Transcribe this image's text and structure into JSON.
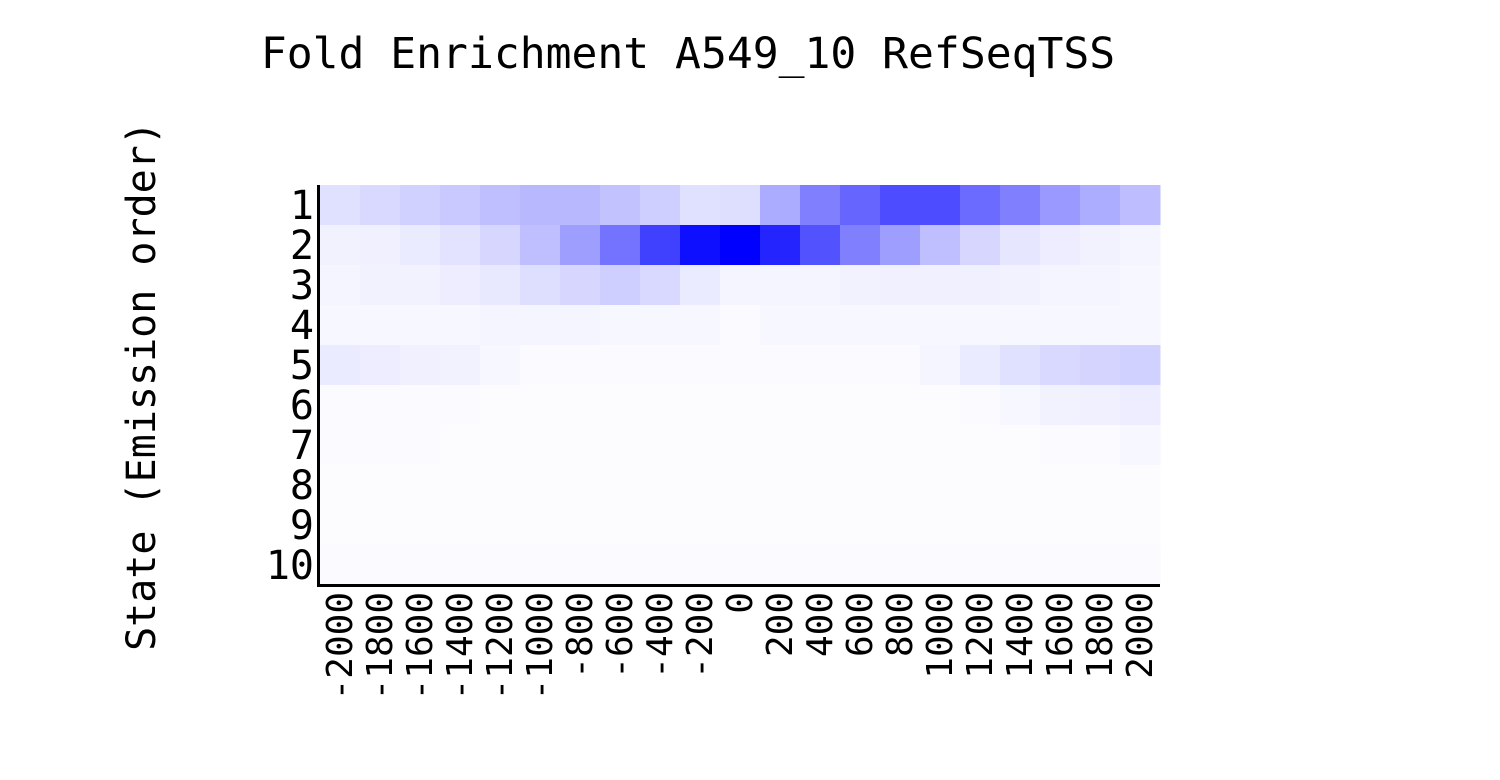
{
  "chart_data": {
    "type": "heatmap",
    "title": "Fold Enrichment A549_10 RefSeqTSS",
    "xlabel": "",
    "ylabel": "State (Emission order)",
    "x_categories": [
      "-2000",
      "-1800",
      "-1600",
      "-1400",
      "-1200",
      "-1000",
      "-800",
      "-600",
      "-400",
      "-200",
      "0",
      "200",
      "400",
      "600",
      "800",
      "1000",
      "1200",
      "1400",
      "1600",
      "1800",
      "2000"
    ],
    "y_categories": [
      "1",
      "2",
      "3",
      "4",
      "5",
      "6",
      "7",
      "8",
      "9",
      "10"
    ],
    "color_scale": {
      "low": "#ffffff",
      "high": "#0000ff"
    },
    "values": [
      [
        0.12,
        0.15,
        0.18,
        0.21,
        0.25,
        0.28,
        0.28,
        0.24,
        0.19,
        0.12,
        0.13,
        0.33,
        0.5,
        0.6,
        0.7,
        0.7,
        0.58,
        0.5,
        0.4,
        0.32,
        0.26
      ],
      [
        0.05,
        0.06,
        0.08,
        0.11,
        0.16,
        0.25,
        0.38,
        0.55,
        0.75,
        0.94,
        1.0,
        0.86,
        0.68,
        0.5,
        0.38,
        0.25,
        0.16,
        0.1,
        0.07,
        0.05,
        0.04
      ],
      [
        0.04,
        0.05,
        0.05,
        0.07,
        0.09,
        0.13,
        0.16,
        0.19,
        0.15,
        0.08,
        0.04,
        0.04,
        0.04,
        0.05,
        0.06,
        0.06,
        0.06,
        0.05,
        0.04,
        0.04,
        0.03
      ],
      [
        0.03,
        0.03,
        0.03,
        0.03,
        0.04,
        0.04,
        0.04,
        0.03,
        0.03,
        0.03,
        0.02,
        0.03,
        0.03,
        0.03,
        0.03,
        0.03,
        0.03,
        0.03,
        0.03,
        0.03,
        0.03
      ],
      [
        0.08,
        0.07,
        0.06,
        0.05,
        0.03,
        0.02,
        0.02,
        0.02,
        0.02,
        0.02,
        0.02,
        0.02,
        0.02,
        0.02,
        0.02,
        0.04,
        0.08,
        0.12,
        0.15,
        0.17,
        0.18
      ],
      [
        0.02,
        0.02,
        0.02,
        0.02,
        0.01,
        0.01,
        0.01,
        0.01,
        0.01,
        0.01,
        0.01,
        0.01,
        0.01,
        0.01,
        0.01,
        0.01,
        0.02,
        0.03,
        0.05,
        0.06,
        0.07
      ],
      [
        0.02,
        0.02,
        0.02,
        0.01,
        0.01,
        0.01,
        0.01,
        0.01,
        0.01,
        0.01,
        0.01,
        0.01,
        0.01,
        0.01,
        0.01,
        0.01,
        0.01,
        0.01,
        0.02,
        0.02,
        0.03
      ],
      [
        0.01,
        0.01,
        0.01,
        0.01,
        0.01,
        0.01,
        0.01,
        0.01,
        0.01,
        0.01,
        0.01,
        0.01,
        0.01,
        0.01,
        0.01,
        0.01,
        0.01,
        0.01,
        0.01,
        0.01,
        0.01
      ],
      [
        0.01,
        0.01,
        0.01,
        0.01,
        0.01,
        0.01,
        0.01,
        0.01,
        0.01,
        0.01,
        0.01,
        0.01,
        0.01,
        0.01,
        0.01,
        0.01,
        0.01,
        0.01,
        0.01,
        0.01,
        0.01
      ],
      [
        0.02,
        0.02,
        0.02,
        0.02,
        0.02,
        0.02,
        0.02,
        0.02,
        0.02,
        0.02,
        0.02,
        0.02,
        0.02,
        0.02,
        0.02,
        0.02,
        0.02,
        0.02,
        0.02,
        0.02,
        0.02
      ]
    ]
  }
}
